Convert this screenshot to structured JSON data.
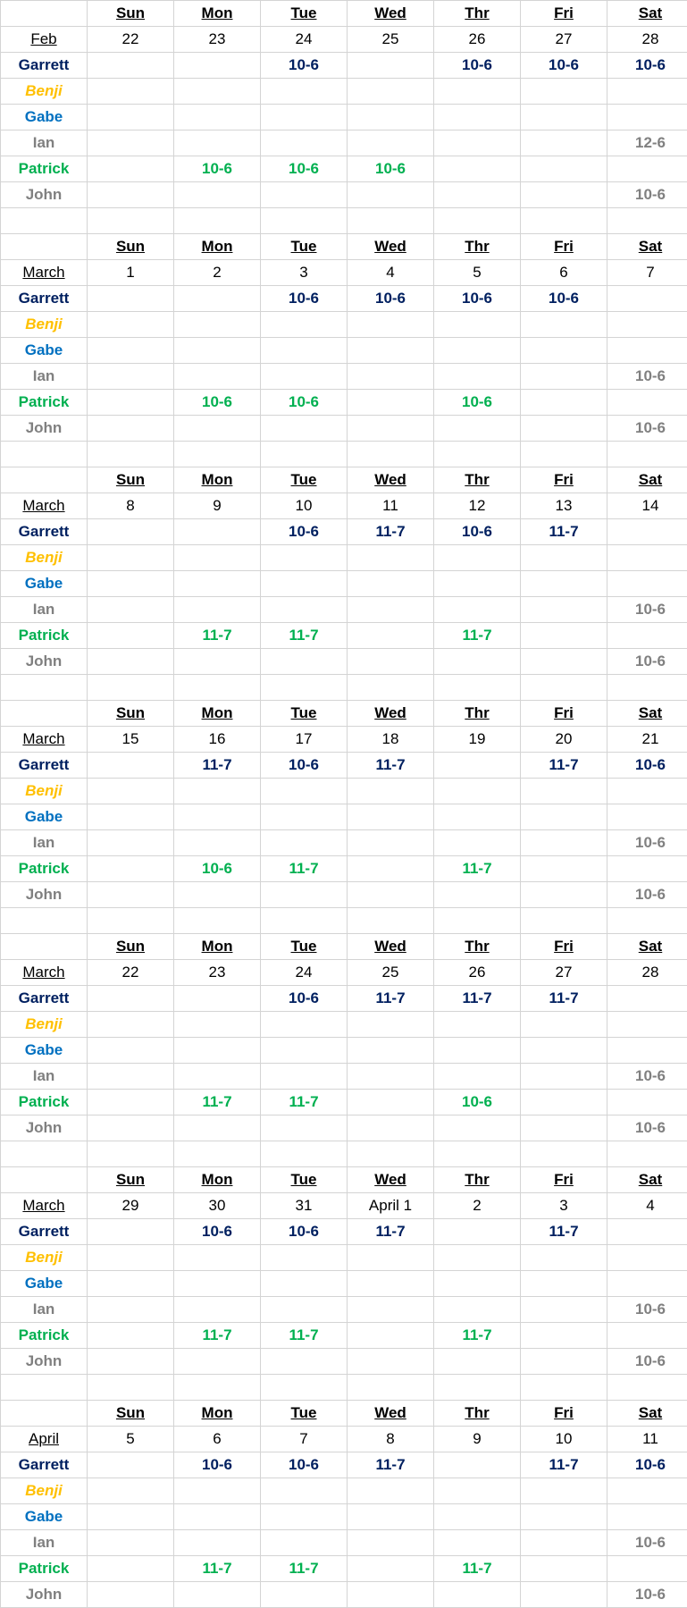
{
  "days": [
    "Sun",
    "Mon",
    "Tue",
    "Wed",
    "Thr",
    "Fri",
    "Sat"
  ],
  "people": [
    {
      "name": "Garrett",
      "key": "garrett",
      "color": "#002060"
    },
    {
      "name": "Benji",
      "key": "benji",
      "color": "#FFC000"
    },
    {
      "name": "Gabe",
      "key": "gabe",
      "color": "#0070C0"
    },
    {
      "name": "Ian",
      "key": "ian",
      "color": "#808080"
    },
    {
      "name": "Patrick",
      "key": "patrick",
      "color": "#00B050"
    },
    {
      "name": "John",
      "key": "john",
      "color": "#808080"
    }
  ],
  "weeks": [
    {
      "month": "Feb",
      "dates": [
        "22",
        "23",
        "24",
        "25",
        "26",
        "27",
        "28"
      ],
      "shifts": {
        "garrett": [
          "",
          "",
          "10-6",
          "",
          "10-6",
          "10-6",
          "10-6"
        ],
        "benji": [
          "",
          "",
          "",
          "",
          "",
          "",
          ""
        ],
        "gabe": [
          "",
          "",
          "",
          "",
          "",
          "",
          ""
        ],
        "ian": [
          "",
          "",
          "",
          "",
          "",
          "",
          "12-6"
        ],
        "patrick": [
          "",
          "10-6",
          "10-6",
          "10-6",
          "",
          "",
          ""
        ],
        "john": [
          "",
          "",
          "",
          "",
          "",
          "",
          "10-6"
        ]
      }
    },
    {
      "month": "March",
      "dates": [
        "1",
        "2",
        "3",
        "4",
        "5",
        "6",
        "7"
      ],
      "shifts": {
        "garrett": [
          "",
          "",
          "10-6",
          "10-6",
          "10-6",
          "10-6",
          ""
        ],
        "benji": [
          "",
          "",
          "",
          "",
          "",
          "",
          ""
        ],
        "gabe": [
          "",
          "",
          "",
          "",
          "",
          "",
          ""
        ],
        "ian": [
          "",
          "",
          "",
          "",
          "",
          "",
          "10-6"
        ],
        "patrick": [
          "",
          "10-6",
          "10-6",
          "",
          "10-6",
          "",
          ""
        ],
        "john": [
          "",
          "",
          "",
          "",
          "",
          "",
          "10-6"
        ]
      }
    },
    {
      "month": "March",
      "dates": [
        "8",
        "9",
        "10",
        "11",
        "12",
        "13",
        "14"
      ],
      "shifts": {
        "garrett": [
          "",
          "",
          "10-6",
          "11-7",
          "10-6",
          "11-7",
          ""
        ],
        "benji": [
          "",
          "",
          "",
          "",
          "",
          "",
          ""
        ],
        "gabe": [
          "",
          "",
          "",
          "",
          "",
          "",
          ""
        ],
        "ian": [
          "",
          "",
          "",
          "",
          "",
          "",
          "10-6"
        ],
        "patrick": [
          "",
          "11-7",
          "11-7",
          "",
          "11-7",
          "",
          ""
        ],
        "john": [
          "",
          "",
          "",
          "",
          "",
          "",
          "10-6"
        ]
      }
    },
    {
      "month": "March",
      "dates": [
        "15",
        "16",
        "17",
        "18",
        "19",
        "20",
        "21"
      ],
      "shifts": {
        "garrett": [
          "",
          "11-7",
          "10-6",
          "11-7",
          "",
          "11-7",
          "10-6"
        ],
        "benji": [
          "",
          "",
          "",
          "",
          "",
          "",
          ""
        ],
        "gabe": [
          "",
          "",
          "",
          "",
          "",
          "",
          ""
        ],
        "ian": [
          "",
          "",
          "",
          "",
          "",
          "",
          "10-6"
        ],
        "patrick": [
          "",
          "10-6",
          "11-7",
          "",
          "11-7",
          "",
          ""
        ],
        "john": [
          "",
          "",
          "",
          "",
          "",
          "",
          "10-6"
        ]
      }
    },
    {
      "month": "March",
      "dates": [
        "22",
        "23",
        "24",
        "25",
        "26",
        "27",
        "28"
      ],
      "shifts": {
        "garrett": [
          "",
          "",
          "10-6",
          "11-7",
          "11-7",
          "11-7",
          ""
        ],
        "benji": [
          "",
          "",
          "",
          "",
          "",
          "",
          ""
        ],
        "gabe": [
          "",
          "",
          "",
          "",
          "",
          "",
          ""
        ],
        "ian": [
          "",
          "",
          "",
          "",
          "",
          "",
          "10-6"
        ],
        "patrick": [
          "",
          "11-7",
          "11-7",
          "",
          "10-6",
          "",
          ""
        ],
        "john": [
          "",
          "",
          "",
          "",
          "",
          "",
          "10-6"
        ]
      }
    },
    {
      "month": "March",
      "dates": [
        "29",
        "30",
        "31",
        "April 1",
        "2",
        "3",
        "4"
      ],
      "shifts": {
        "garrett": [
          "",
          "10-6",
          "10-6",
          "11-7",
          "",
          "11-7",
          ""
        ],
        "benji": [
          "",
          "",
          "",
          "",
          "",
          "",
          ""
        ],
        "gabe": [
          "",
          "",
          "",
          "",
          "",
          "",
          ""
        ],
        "ian": [
          "",
          "",
          "",
          "",
          "",
          "",
          "10-6"
        ],
        "patrick": [
          "",
          "11-7",
          "11-7",
          "",
          "11-7",
          "",
          ""
        ],
        "john": [
          "",
          "",
          "",
          "",
          "",
          "",
          "10-6"
        ]
      }
    },
    {
      "month": "April",
      "dates": [
        "5",
        "6",
        "7",
        "8",
        "9",
        "10",
        "11"
      ],
      "shifts": {
        "garrett": [
          "",
          "10-6",
          "10-6",
          "11-7",
          "",
          "11-7",
          "10-6"
        ],
        "benji": [
          "",
          "",
          "",
          "",
          "",
          "",
          ""
        ],
        "gabe": [
          "",
          "",
          "",
          "",
          "",
          "",
          ""
        ],
        "ian": [
          "",
          "",
          "",
          "",
          "",
          "",
          "10-6"
        ],
        "patrick": [
          "",
          "11-7",
          "11-7",
          "",
          "11-7",
          "",
          ""
        ],
        "john": [
          "",
          "",
          "",
          "",
          "",
          "",
          "10-6"
        ]
      }
    }
  ]
}
